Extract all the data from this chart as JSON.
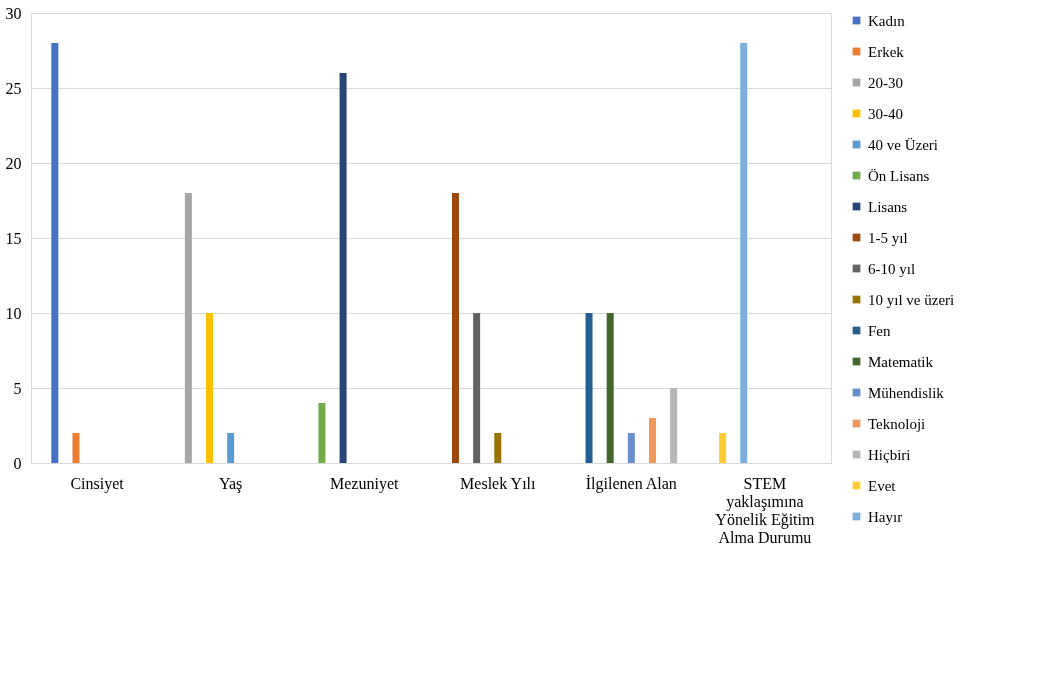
{
  "chart_data": {
    "type": "bar",
    "categories": [
      "Cinsiyet",
      "Yaş",
      "Mezuniyet",
      "Meslek Yılı",
      "İlgilenen Alan",
      "STEM yaklaşımına Yönelik Eğitim Alma Durumu"
    ],
    "series": [
      {
        "name": "Kadın",
        "color": "#4472c4",
        "values": [
          28,
          null,
          null,
          null,
          null,
          null
        ]
      },
      {
        "name": "Erkek",
        "color": "#ed7d31",
        "values": [
          2,
          null,
          null,
          null,
          null,
          null
        ]
      },
      {
        "name": "20-30",
        "color": "#a5a5a5",
        "values": [
          null,
          18,
          null,
          null,
          null,
          null
        ]
      },
      {
        "name": "30-40",
        "color": "#ffc000",
        "values": [
          null,
          10,
          null,
          null,
          null,
          null
        ]
      },
      {
        "name": "40 ve Üzeri",
        "color": "#5b9bd5",
        "values": [
          null,
          2,
          null,
          null,
          null,
          null
        ]
      },
      {
        "name": "Ön Lisans",
        "color": "#70ad47",
        "values": [
          null,
          null,
          4,
          null,
          null,
          null
        ]
      },
      {
        "name": "Lisans",
        "color": "#264478",
        "values": [
          null,
          null,
          26,
          null,
          null,
          null
        ]
      },
      {
        "name": "1-5 yıl",
        "color": "#9e480e",
        "values": [
          null,
          null,
          null,
          18,
          null,
          null
        ]
      },
      {
        "name": "6-10 yıl",
        "color": "#636363",
        "values": [
          null,
          null,
          null,
          10,
          null,
          null
        ]
      },
      {
        "name": "10 yıl ve üzeri",
        "color": "#997300",
        "values": [
          null,
          null,
          null,
          2,
          null,
          null
        ]
      },
      {
        "name": "Fen",
        "color": "#255e91",
        "values": [
          null,
          null,
          null,
          null,
          10,
          null
        ]
      },
      {
        "name": "Matematik",
        "color": "#43682b",
        "values": [
          null,
          null,
          null,
          null,
          10,
          null
        ]
      },
      {
        "name": "Mühendislik",
        "color": "#698ed0",
        "values": [
          null,
          null,
          null,
          null,
          2,
          null
        ]
      },
      {
        "name": "Teknoloji",
        "color": "#f1975a",
        "values": [
          null,
          null,
          null,
          null,
          3,
          null
        ]
      },
      {
        "name": "Hiçbiri",
        "color": "#b7b7b7",
        "values": [
          null,
          null,
          null,
          null,
          5,
          null
        ]
      },
      {
        "name": "Evet",
        "color": "#ffcd33",
        "values": [
          null,
          null,
          null,
          null,
          null,
          2
        ]
      },
      {
        "name": "Hayır",
        "color": "#7cafdd",
        "values": [
          null,
          null,
          null,
          null,
          null,
          28
        ]
      }
    ],
    "ylim": [
      0,
      30
    ],
    "yticks": [
      0,
      5,
      10,
      15,
      20,
      25,
      30
    ],
    "grid": "y",
    "legend": "right"
  }
}
